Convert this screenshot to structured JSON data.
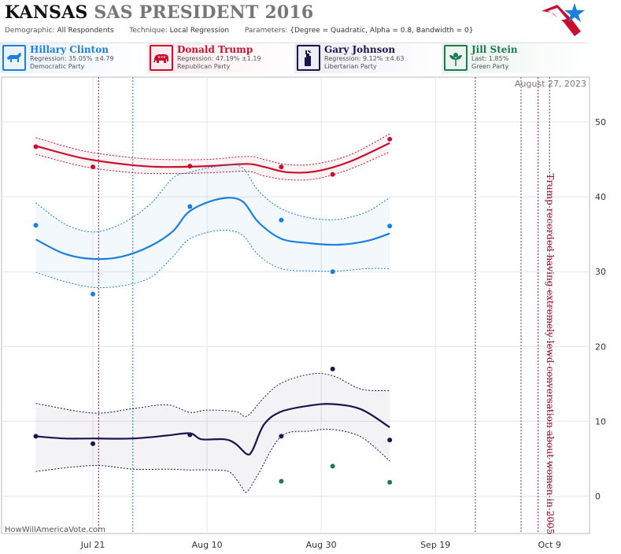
{
  "header": {
    "state": "KANSAS",
    "title_rest": "SAS PRESIDENT 2016",
    "demographic_label": "Demographic:",
    "demographic_value": "All Respondents",
    "technique_label": "Technique:",
    "technique_value": "Local Regression",
    "parameters_label": "Parameters:",
    "parameters_value": "{Degree = Quadratic, Alpha = 0.8, Bandwidth = 0}"
  },
  "candidates": [
    {
      "name": "Hillary Clinton",
      "line1": "Regression: 35.05% ±4.79",
      "line2": "Democratic Party",
      "color": "#1a7fe0",
      "bg": "#e8f2fb",
      "icon": "donkey-icon"
    },
    {
      "name": "Donald Trump",
      "line1": "Regression: 47.19% ±1.19",
      "line2": "Republican Party",
      "color": "#c8102e",
      "bg": "#fbe9ec",
      "icon": "elephant-icon"
    },
    {
      "name": "Gary Johnson",
      "line1": "Regression: 9.12% ±4.63",
      "line2": "Libertarian Party",
      "color": "#1a1450",
      "bg": "#ebebf3",
      "icon": "statue-of-liberty-icon"
    },
    {
      "name": "Jill Stein",
      "line1": "Last: 1.85%",
      "line2": "Green Party",
      "color": "#1e7a4e",
      "bg": "#e9f4ee",
      "icon": "leaf-flower-icon"
    }
  ],
  "date_badge": "August 27, 2023",
  "source": "HowWillAmericaVote.com",
  "chart_data": {
    "type": "line",
    "x_type": "date",
    "xlim": [
      "2016-07-05",
      "2016-10-16"
    ],
    "ylim": [
      -5,
      56
    ],
    "y_ticks": [
      0,
      10,
      20,
      30,
      40,
      50
    ],
    "x_ticks": [
      {
        "date": "2016-07-21",
        "label": "Jul 21"
      },
      {
        "date": "2016-08-10",
        "label": "Aug 10"
      },
      {
        "date": "2016-08-30",
        "label": "Aug 30"
      },
      {
        "date": "2016-09-19",
        "label": "Sep 19"
      },
      {
        "date": "2016-10-09",
        "label": "Oct 9"
      }
    ],
    "grid": true,
    "event_lines": [
      {
        "date": "2016-07-22",
        "party": "republican"
      },
      {
        "date": "2016-07-28",
        "party": "democratic"
      },
      {
        "date": "2016-09-26",
        "party": "debate"
      },
      {
        "date": "2016-10-04",
        "party": "debate"
      },
      {
        "date": "2016-10-07",
        "party": "republican"
      },
      {
        "date": "2016-10-09",
        "party": "debate"
      }
    ],
    "annotation": {
      "date": "2016-10-08",
      "y": 19,
      "text": "Trump recorded having extremely lewd conversation about women in 2005"
    },
    "series": [
      {
        "name": "Donald Trump",
        "color": "#c8102e",
        "points": [
          [
            "2016-07-11",
            46.7
          ],
          [
            "2016-07-21",
            44.0
          ],
          [
            "2016-08-07",
            44.1
          ],
          [
            "2016-08-23",
            44.0
          ],
          [
            "2016-09-01",
            43.0
          ],
          [
            "2016-09-11",
            47.7
          ]
        ],
        "fit": [
          [
            "2016-07-11",
            46.8
          ],
          [
            "2016-07-19",
            45.2
          ],
          [
            "2016-07-27",
            44.3
          ],
          [
            "2016-08-02",
            44.0
          ],
          [
            "2016-08-10",
            44.1
          ],
          [
            "2016-08-17",
            44.4
          ],
          [
            "2016-08-20",
            44.0
          ],
          [
            "2016-08-24",
            43.3
          ],
          [
            "2016-08-29",
            43.4
          ],
          [
            "2016-09-04",
            44.7
          ],
          [
            "2016-09-11",
            47.2
          ]
        ],
        "upper": [
          [
            "2016-07-11",
            47.9
          ],
          [
            "2016-07-19",
            46.2
          ],
          [
            "2016-07-27",
            45.3
          ],
          [
            "2016-08-02",
            45.0
          ],
          [
            "2016-08-10",
            45.0
          ],
          [
            "2016-08-17",
            45.4
          ],
          [
            "2016-08-20",
            45.0
          ],
          [
            "2016-08-24",
            44.3
          ],
          [
            "2016-08-29",
            44.4
          ],
          [
            "2016-09-04",
            45.6
          ],
          [
            "2016-09-11",
            48.4
          ]
        ],
        "lower": [
          [
            "2016-07-11",
            45.7
          ],
          [
            "2016-07-19",
            44.1
          ],
          [
            "2016-07-27",
            43.3
          ],
          [
            "2016-08-02",
            43.1
          ],
          [
            "2016-08-10",
            43.2
          ],
          [
            "2016-08-17",
            43.4
          ],
          [
            "2016-08-20",
            42.8
          ],
          [
            "2016-08-24",
            42.3
          ],
          [
            "2016-08-29",
            42.4
          ],
          [
            "2016-09-04",
            43.7
          ],
          [
            "2016-09-11",
            46.0
          ]
        ]
      },
      {
        "name": "Hillary Clinton",
        "color": "#1a7fe0",
        "points": [
          [
            "2016-07-11",
            36.2
          ],
          [
            "2016-07-21",
            27.0
          ],
          [
            "2016-08-07",
            38.7
          ],
          [
            "2016-08-23",
            36.9
          ],
          [
            "2016-09-01",
            30.0
          ],
          [
            "2016-09-11",
            36.1
          ]
        ],
        "fit": [
          [
            "2016-07-11",
            34.3
          ],
          [
            "2016-07-16",
            32.4
          ],
          [
            "2016-07-21",
            31.7
          ],
          [
            "2016-07-26",
            32.0
          ],
          [
            "2016-07-31",
            33.4
          ],
          [
            "2016-08-04",
            35.4
          ],
          [
            "2016-08-07",
            38.1
          ],
          [
            "2016-08-12",
            39.7
          ],
          [
            "2016-08-16",
            39.5
          ],
          [
            "2016-08-19",
            36.6
          ],
          [
            "2016-08-23",
            34.4
          ],
          [
            "2016-08-28",
            33.8
          ],
          [
            "2016-09-02",
            33.6
          ],
          [
            "2016-09-07",
            34.1
          ],
          [
            "2016-09-11",
            35.1
          ]
        ],
        "upper": [
          [
            "2016-07-11",
            39.2
          ],
          [
            "2016-07-16",
            36.4
          ],
          [
            "2016-07-21",
            35.3
          ],
          [
            "2016-07-26",
            36.4
          ],
          [
            "2016-07-31",
            39.0
          ],
          [
            "2016-08-04",
            42.5
          ],
          [
            "2016-08-07",
            43.3
          ],
          [
            "2016-08-12",
            44.1
          ],
          [
            "2016-08-16",
            44.0
          ],
          [
            "2016-08-19",
            40.8
          ],
          [
            "2016-08-23",
            38.4
          ],
          [
            "2016-08-28",
            37.2
          ],
          [
            "2016-09-02",
            37.0
          ],
          [
            "2016-09-07",
            38.0
          ],
          [
            "2016-09-11",
            39.9
          ]
        ],
        "lower": [
          [
            "2016-07-11",
            29.9
          ],
          [
            "2016-07-16",
            28.7
          ],
          [
            "2016-07-21",
            27.9
          ],
          [
            "2016-07-26",
            28.1
          ],
          [
            "2016-07-31",
            29.2
          ],
          [
            "2016-08-04",
            32.0
          ],
          [
            "2016-08-07",
            34.4
          ],
          [
            "2016-08-12",
            35.5
          ],
          [
            "2016-08-16",
            35.0
          ],
          [
            "2016-08-19",
            32.2
          ],
          [
            "2016-08-23",
            30.4
          ],
          [
            "2016-08-28",
            30.1
          ],
          [
            "2016-09-02",
            30.1
          ],
          [
            "2016-09-07",
            30.4
          ],
          [
            "2016-09-11",
            30.4
          ]
        ]
      },
      {
        "name": "Gary Johnson",
        "color": "#1a1450",
        "points": [
          [
            "2016-07-11",
            8.0
          ],
          [
            "2016-07-21",
            7.0
          ],
          [
            "2016-08-07",
            8.2
          ],
          [
            "2016-08-23",
            8.0
          ],
          [
            "2016-09-01",
            17.0
          ],
          [
            "2016-09-11",
            7.5
          ]
        ],
        "fit": [
          [
            "2016-07-11",
            8.0
          ],
          [
            "2016-07-16",
            7.7
          ],
          [
            "2016-07-21",
            7.7
          ],
          [
            "2016-07-28",
            7.7
          ],
          [
            "2016-08-03",
            8.1
          ],
          [
            "2016-08-07",
            8.4
          ],
          [
            "2016-08-09",
            7.6
          ],
          [
            "2016-08-13",
            7.6
          ],
          [
            "2016-08-15",
            7.0
          ],
          [
            "2016-08-17",
            5.6
          ],
          [
            "2016-08-18",
            6.2
          ],
          [
            "2016-08-20",
            9.6
          ],
          [
            "2016-08-23",
            11.3
          ],
          [
            "2016-08-28",
            12.1
          ],
          [
            "2016-09-01",
            12.3
          ],
          [
            "2016-09-06",
            11.6
          ],
          [
            "2016-09-11",
            9.2
          ]
        ],
        "upper": [
          [
            "2016-07-11",
            12.4
          ],
          [
            "2016-07-21",
            11.1
          ],
          [
            "2016-07-28",
            11.7
          ],
          [
            "2016-08-03",
            12.2
          ],
          [
            "2016-08-07",
            11.2
          ],
          [
            "2016-08-10",
            11.5
          ],
          [
            "2016-08-15",
            11.3
          ],
          [
            "2016-08-17",
            10.7
          ],
          [
            "2016-08-20",
            13.2
          ],
          [
            "2016-08-23",
            15.1
          ],
          [
            "2016-08-28",
            16.3
          ],
          [
            "2016-09-01",
            16.1
          ],
          [
            "2016-09-06",
            14.3
          ],
          [
            "2016-09-11",
            14.1
          ]
        ],
        "lower": [
          [
            "2016-07-11",
            3.3
          ],
          [
            "2016-07-21",
            4.1
          ],
          [
            "2016-07-28",
            3.6
          ],
          [
            "2016-08-03",
            3.6
          ],
          [
            "2016-08-07",
            3.5
          ],
          [
            "2016-08-11",
            3.5
          ],
          [
            "2016-08-14",
            3.2
          ],
          [
            "2016-08-16",
            1.3
          ],
          [
            "2016-08-17",
            0.6
          ],
          [
            "2016-08-19",
            3.0
          ],
          [
            "2016-08-23",
            8.0
          ],
          [
            "2016-08-28",
            8.7
          ],
          [
            "2016-09-01",
            8.9
          ],
          [
            "2016-09-06",
            7.9
          ],
          [
            "2016-09-11",
            4.7
          ]
        ]
      },
      {
        "name": "Jill Stein",
        "color": "#1e7a4e",
        "points": [
          [
            "2016-08-23",
            2.0
          ],
          [
            "2016-09-01",
            4.0
          ],
          [
            "2016-09-11",
            1.85
          ]
        ]
      }
    ]
  }
}
